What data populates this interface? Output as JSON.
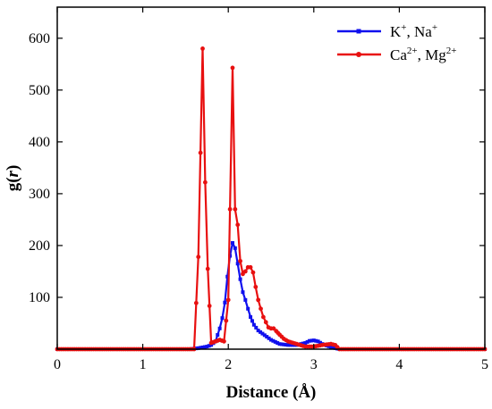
{
  "chart_data": {
    "type": "line",
    "xlabel": "Distance (Å)",
    "ylabel": {
      "main": "g(",
      "var": "r",
      "tail": ")"
    },
    "xlim": [
      0,
      5
    ],
    "ylim": [
      0,
      660
    ],
    "x_ticks": [
      0,
      1,
      2,
      3,
      4,
      5
    ],
    "y_ticks": [
      100,
      200,
      300,
      400,
      500,
      600
    ],
    "grid": false,
    "legend_position": "top-right",
    "series": [
      {
        "name": "K+, Na+",
        "legend_label": {
          "a": "K",
          "a_sup": "+",
          "b": ", Na",
          "b_sup": "+"
        },
        "color": "#1010ee",
        "marker": "square",
        "x": [
          1.55,
          1.65,
          1.75,
          1.8,
          1.85,
          1.9,
          1.93,
          1.96,
          1.99,
          2.02,
          2.05,
          2.08,
          2.11,
          2.14,
          2.17,
          2.2,
          2.23,
          2.26,
          2.3,
          2.35,
          2.4,
          2.45,
          2.5,
          2.55,
          2.6,
          2.7,
          2.8,
          2.9,
          2.95,
          3.0,
          3.05,
          3.1,
          3.15,
          3.2,
          3.3
        ],
        "y": [
          0,
          2,
          5,
          8,
          15,
          40,
          60,
          90,
          140,
          180,
          205,
          195,
          165,
          135,
          110,
          95,
          78,
          62,
          47,
          36,
          30,
          24,
          18,
          14,
          10,
          8,
          8,
          12,
          16,
          17,
          15,
          10,
          7,
          4,
          0
        ]
      },
      {
        "name": "Ca2+, Mg2+",
        "legend_label": {
          "a": "Ca",
          "a_sup": "2+",
          "b": ", Mg",
          "b_sup": "2+"
        },
        "color": "#e81010",
        "marker": "circle",
        "x": [
          1.6,
          1.65,
          1.7,
          1.73,
          1.76,
          1.8,
          1.85,
          1.9,
          1.95,
          2.0,
          2.02,
          2.05,
          2.08,
          2.11,
          2.14,
          2.17,
          2.2,
          2.23,
          2.26,
          2.29,
          2.32,
          2.35,
          2.38,
          2.41,
          2.44,
          2.47,
          2.5,
          2.53,
          2.56,
          2.6,
          2.65,
          2.7,
          2.8,
          2.9,
          3.0,
          3.1,
          3.2,
          3.25,
          3.3
        ],
        "y": [
          0,
          178,
          580,
          322,
          155,
          12,
          15,
          18,
          15,
          95,
          270,
          543,
          270,
          240,
          170,
          145,
          150,
          158,
          158,
          148,
          120,
          95,
          78,
          62,
          52,
          42,
          40,
          40,
          35,
          28,
          20,
          15,
          10,
          5,
          5,
          8,
          10,
          8,
          0
        ]
      }
    ]
  }
}
